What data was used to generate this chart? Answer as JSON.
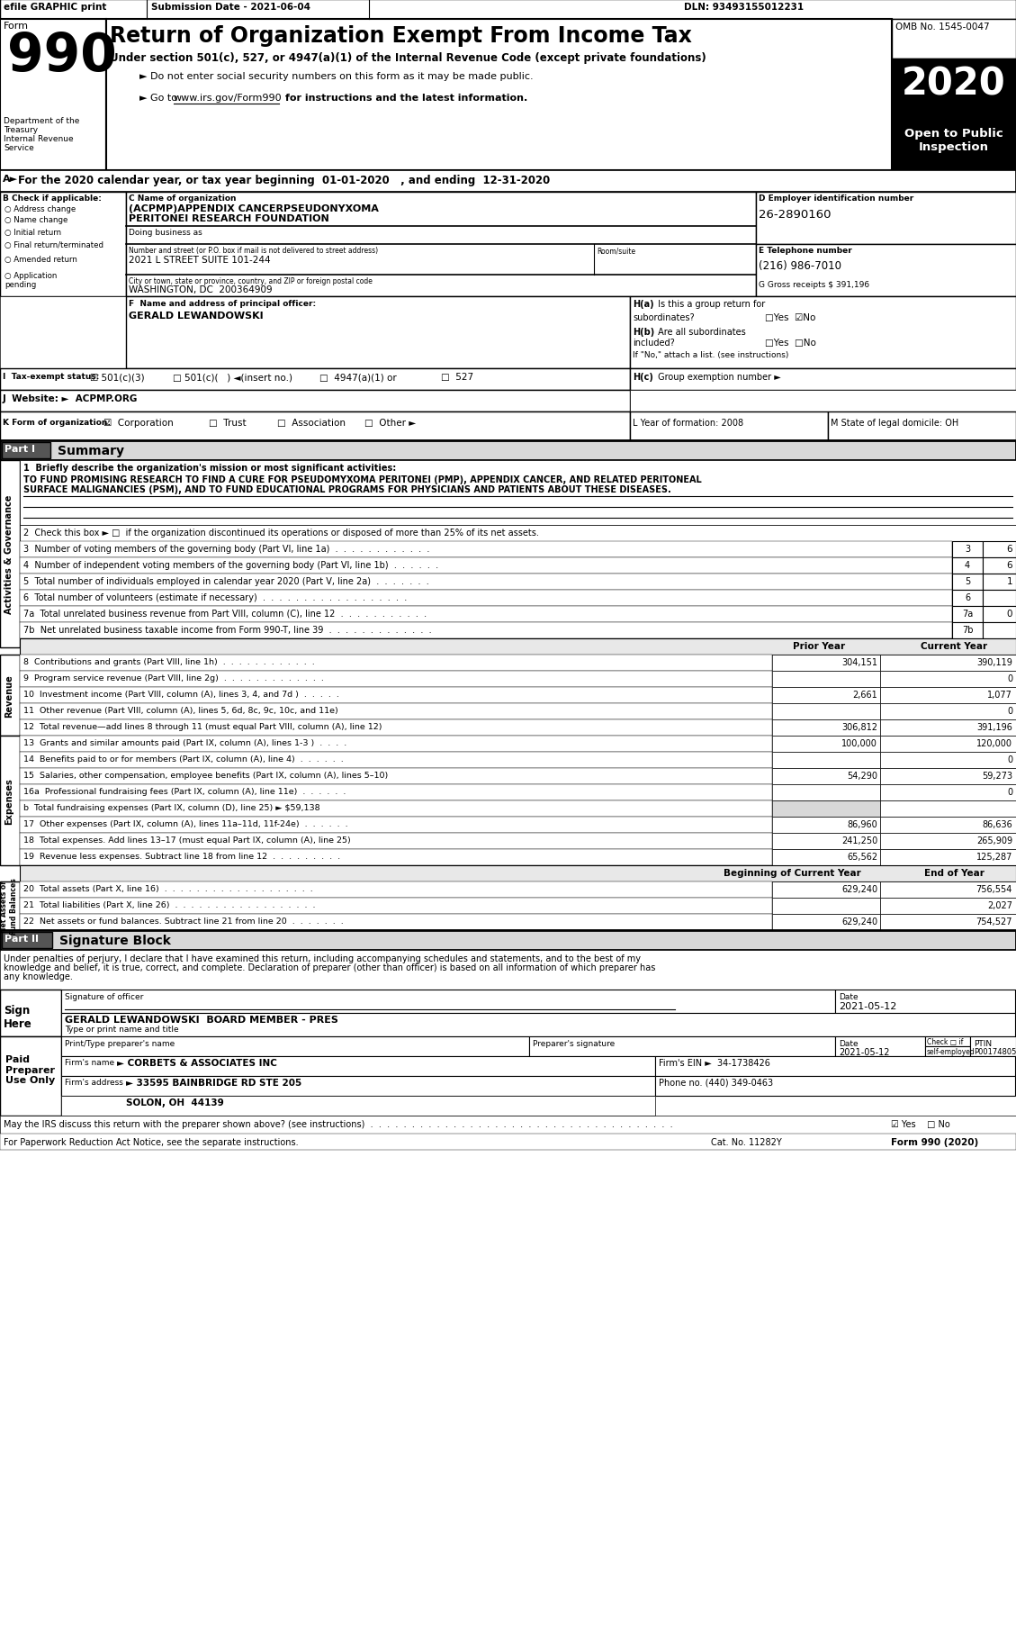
{
  "checks": [
    "Address change",
    "Name change",
    "Initial return",
    "Final return/terminated",
    "Amended return",
    "Application\npending"
  ],
  "org_name1": "(ACPMP)APPENDIX CANCERPSEUDONYXOMA",
  "org_name2": "PERITONEI RESEARCH FOUNDATION",
  "ein": "26-2890160",
  "tel": "(216) 986-7010",
  "gross": "G Gross receipts $ 391,196",
  "street": "2021 L STREET SUITE 101-244",
  "city": "WASHINGTON, DC  200364909",
  "principal": "GERALD LEWANDOWSKI",
  "sig_date": "2021-05-12",
  "sig_name": "GERALD LEWANDOWSKI  BOARD MEMBER - PRES",
  "preparer_date": "2021-05-12",
  "preparer_ptin": "P00174805",
  "firm_name": "► CORBETS & ASSOCIATES INC",
  "firm_ein": "34-1738426",
  "firm_addr": "► 33595 BAINBRIDGE RD STE 205",
  "firm_city": "SOLON, OH  44139",
  "firm_phone": "(440) 349-0463",
  "sig_text1": "Under penalties of perjury, I declare that I have examined this return, including accompanying schedules and statements, and to the best of my",
  "sig_text2": "knowledge and belief, it is true, correct, and complete. Declaration of preparer (other than officer) is based on all information of which preparer has",
  "sig_text3": "any knowledge.",
  "footer_cat": "Cat. No. 11282Y",
  "footer_form": "Form 990 (2020)",
  "lines_governance": [
    {
      "num": "3",
      "text": "Number of voting members of the governing body (Part VI, line 1a)  .  .  .  .  .  .  .  .  .  .  .  .",
      "val": "6"
    },
    {
      "num": "4",
      "text": "Number of independent voting members of the governing body (Part VI, line 1b)  .  .  .  .  .  .",
      "val": "6"
    },
    {
      "num": "5",
      "text": "Total number of individuals employed in calendar year 2020 (Part V, line 2a)  .  .  .  .  .  .  .",
      "val": "1"
    },
    {
      "num": "6",
      "text": "Total number of volunteers (estimate if necessary)  .  .  .  .  .  .  .  .  .  .  .  .  .  .  .  .  .  .",
      "val": ""
    },
    {
      "num": "7a",
      "text": "Total unrelated business revenue from Part VIII, column (C), line 12  .  .  .  .  .  .  .  .  .  .  .",
      "val": "0"
    },
    {
      "num": "7b",
      "text": "Net unrelated business taxable income from Form 990-T, line 39  .  .  .  .  .  .  .  .  .  .  .  .  .",
      "val": ""
    }
  ],
  "revenue_lines": [
    {
      "num": "8",
      "text": "Contributions and grants (Part VIII, line 1h)  .  .  .  .  .  .  .  .  .  .  .  .",
      "prior": "304,151",
      "current": "390,119"
    },
    {
      "num": "9",
      "text": "Program service revenue (Part VIII, line 2g)  .  .  .  .  .  .  .  .  .  .  .  .  .",
      "prior": "",
      "current": "0"
    },
    {
      "num": "10",
      "text": "Investment income (Part VIII, column (A), lines 3, 4, and 7d )  .  .  .  .  .",
      "prior": "2,661",
      "current": "1,077"
    },
    {
      "num": "11",
      "text": "Other revenue (Part VIII, column (A), lines 5, 6d, 8c, 9c, 10c, and 11e)",
      "prior": "",
      "current": "0"
    },
    {
      "num": "12",
      "text": "Total revenue—add lines 8 through 11 (must equal Part VIII, column (A), line 12)",
      "prior": "306,812",
      "current": "391,196"
    }
  ],
  "expense_lines": [
    {
      "num": "13",
      "text": "Grants and similar amounts paid (Part IX, column (A), lines 1-3 )  .  .  .  .",
      "prior": "100,000",
      "current": "120,000"
    },
    {
      "num": "14",
      "text": "Benefits paid to or for members (Part IX, column (A), line 4)  .  .  .  .  .  .",
      "prior": "",
      "current": "0"
    },
    {
      "num": "15",
      "text": "Salaries, other compensation, employee benefits (Part IX, column (A), lines 5–10)",
      "prior": "54,290",
      "current": "59,273"
    },
    {
      "num": "16a",
      "text": "Professional fundraising fees (Part IX, column (A), line 11e)  .  .  .  .  .  .",
      "prior": "",
      "current": "0"
    },
    {
      "num": "b",
      "text": "Total fundraising expenses (Part IX, column (D), line 25) ► $59,138",
      "prior": "",
      "current": ""
    },
    {
      "num": "17",
      "text": "Other expenses (Part IX, column (A), lines 11a–11d, 11f-24e)  .  .  .  .  .  .",
      "prior": "86,960",
      "current": "86,636"
    },
    {
      "num": "18",
      "text": "Total expenses. Add lines 13–17 (must equal Part IX, column (A), line 25)",
      "prior": "241,250",
      "current": "265,909"
    },
    {
      "num": "19",
      "text": "Revenue less expenses. Subtract line 18 from line 12  .  .  .  .  .  .  .  .  .",
      "prior": "65,562",
      "current": "125,287"
    }
  ],
  "net_lines": [
    {
      "num": "20",
      "text": "Total assets (Part X, line 16)  .  .  .  .  .  .  .  .  .  .  .  .  .  .  .  .  .  .  .",
      "prior": "629,240",
      "current": "756,554"
    },
    {
      "num": "21",
      "text": "Total liabilities (Part X, line 26)  .  .  .  .  .  .  .  .  .  .  .  .  .  .  .  .  .  .",
      "prior": "",
      "current": "2,027"
    },
    {
      "num": "22",
      "text": "Net assets or fund balances. Subtract line 21 from line 20  .  .  .  .  .  .  .",
      "prior": "629,240",
      "current": "754,527"
    }
  ]
}
